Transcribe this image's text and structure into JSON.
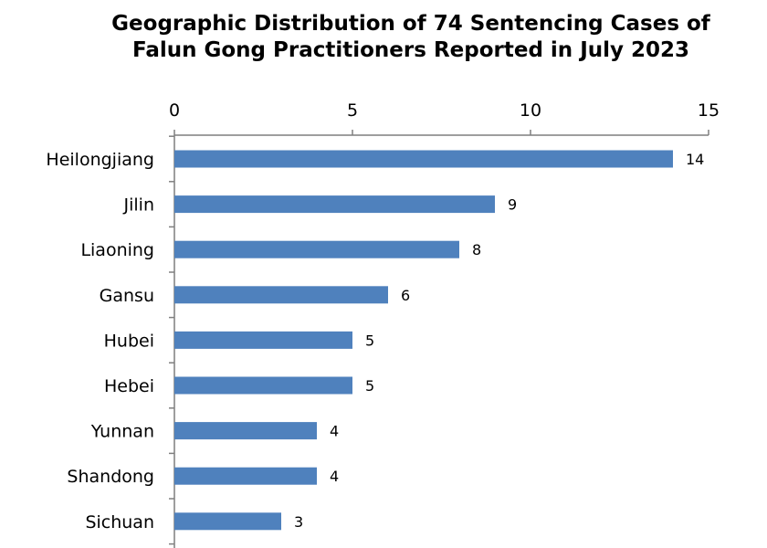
{
  "chart_data": {
    "type": "bar",
    "orientation": "horizontal",
    "title_lines": [
      "Geographic Distribution of 74 Sentencing Cases of",
      "Falun Gong Practitioners Reported in July 2023"
    ],
    "categories": [
      "Heilongjiang",
      "Jilin",
      "Liaoning",
      "Gansu",
      "Hubei",
      "Hebei",
      "Yunnan",
      "Shandong",
      "Sichuan"
    ],
    "values": [
      14,
      9,
      8,
      6,
      5,
      5,
      4,
      4,
      3
    ],
    "xlim": [
      0,
      15
    ],
    "xticks": [
      0,
      5,
      10,
      15
    ],
    "x_axis_position": "top",
    "grid": false,
    "legend": "none",
    "bar_color": "#4F81BD"
  }
}
